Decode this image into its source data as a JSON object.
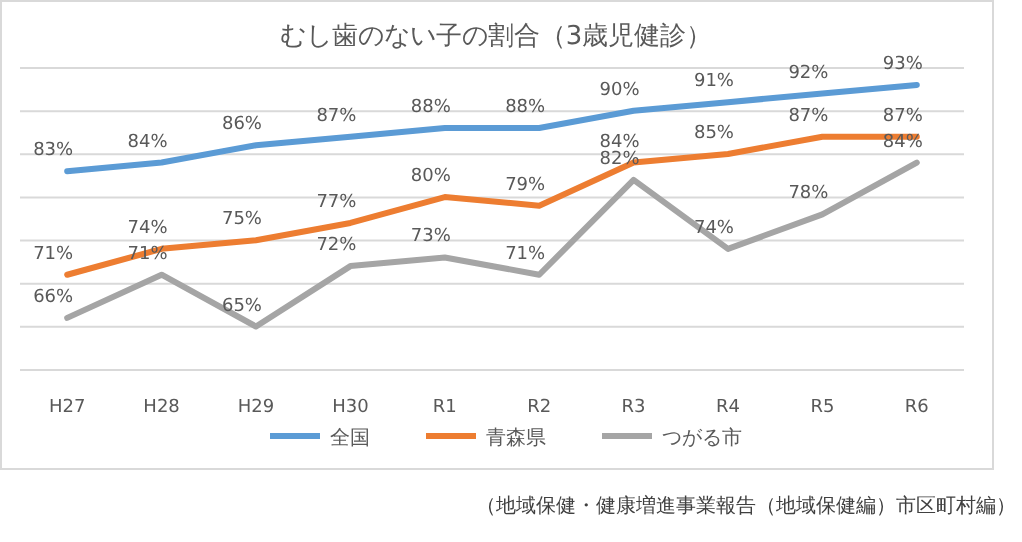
{
  "chart_data": {
    "type": "line",
    "title": "むし歯のない子の割合（3歳児健診）",
    "categories": [
      "H27",
      "H28",
      "H29",
      "H30",
      "R1",
      "R2",
      "R3",
      "R4",
      "R5",
      "R6"
    ],
    "series": [
      {
        "name": "全国",
        "color": "#5b9bd5",
        "values": [
          83,
          84,
          86,
          87,
          88,
          88,
          90,
          91,
          92,
          93
        ],
        "value_labels": [
          "83%",
          "84%",
          "86%",
          "87%",
          "88%",
          "88%",
          "90%",
          "91%",
          "92%",
          "93%"
        ]
      },
      {
        "name": "青森県",
        "color": "#ed7d31",
        "values": [
          71,
          74,
          75,
          77,
          80,
          79,
          84,
          85,
          87,
          87
        ],
        "value_labels": [
          "71%",
          "74%",
          "75%",
          "77%",
          "80%",
          "79%",
          "84%",
          "85%",
          "87%",
          "87%"
        ]
      },
      {
        "name": "つがる市",
        "color": "#a5a5a5",
        "values": [
          66,
          71,
          65,
          72,
          73,
          71,
          82,
          74,
          78,
          84
        ],
        "value_labels": [
          "66%",
          "71%",
          "65%",
          "72%",
          "73%",
          "71%",
          "82%",
          "74%",
          "78%",
          "84%"
        ]
      }
    ],
    "tick_labels": "x",
    "grid": "y",
    "legend": "bottom",
    "marker": "none",
    "line_style": "solid",
    "annotations": [
      "（地域保健・健康増進事業報告（地域保健編）市区町村編）"
    ]
  }
}
